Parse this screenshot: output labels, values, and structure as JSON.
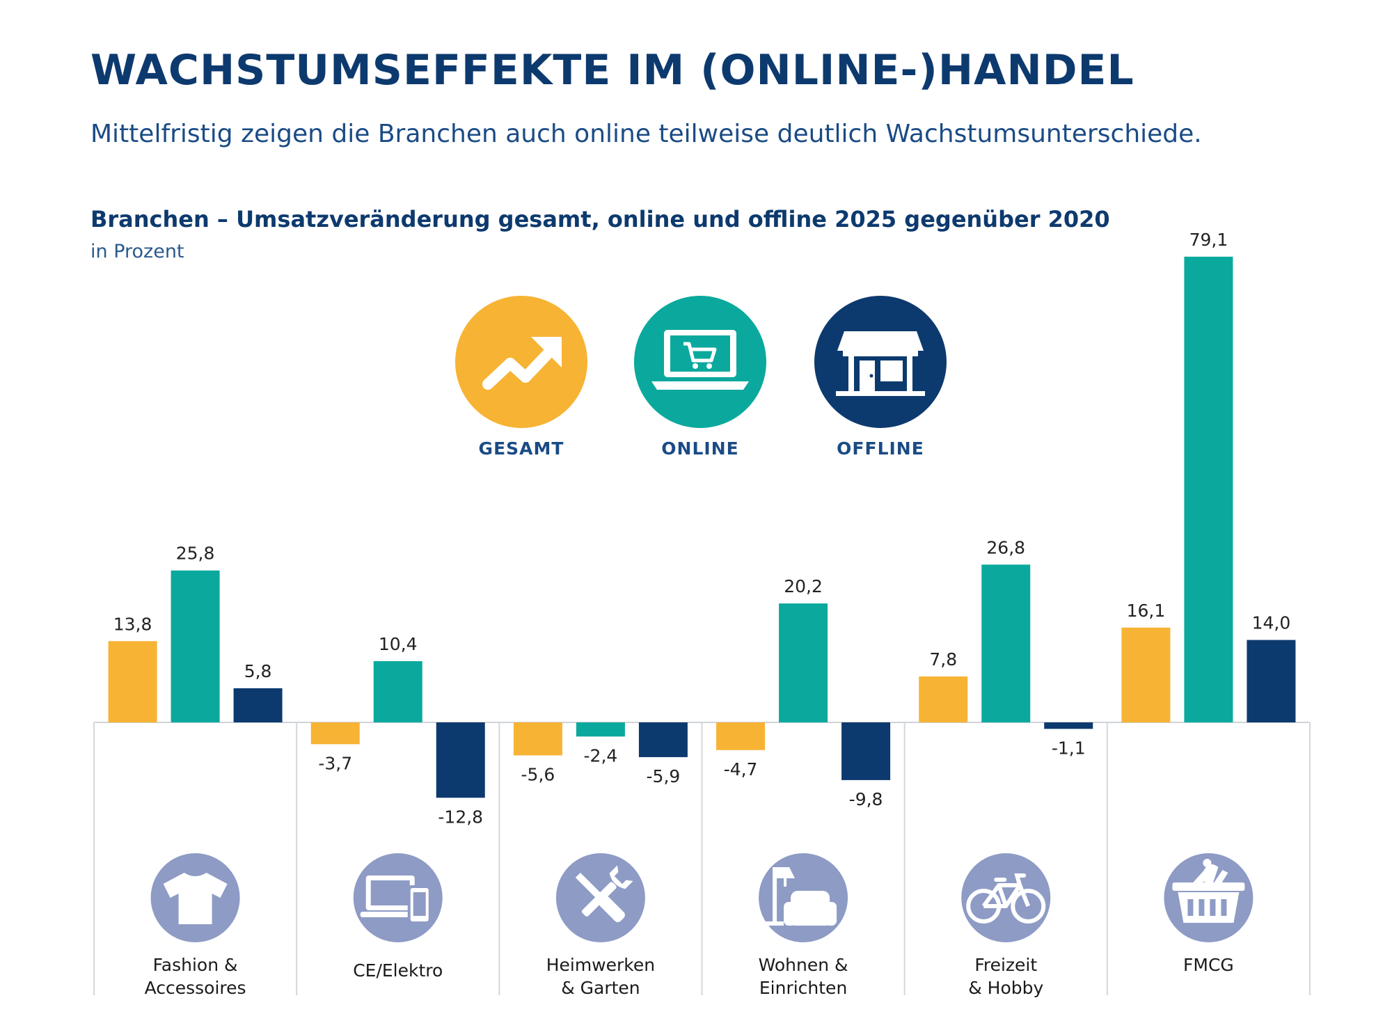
{
  "header": {
    "title": "WACHSTUMSEFFEKTE IM (ONLINE-)HANDEL",
    "subtitle": "Mittelfristig zeigen die Branchen auch online teilweise deutlich Wachstumsunterschiede."
  },
  "chart_data": {
    "type": "bar",
    "title": "Branchen – Umsatzveränderung gesamt, online und offline 2025 gegenüber 2020",
    "unit": "in Prozent",
    "categories": [
      {
        "label_lines": [
          "Fashion &",
          "Accessoires"
        ],
        "icon": "tshirt-icon"
      },
      {
        "label_lines": [
          "CE/Elektro"
        ],
        "icon": "devices-icon"
      },
      {
        "label_lines": [
          "Heimwerken",
          "& Garten"
        ],
        "icon": "tools-icon"
      },
      {
        "label_lines": [
          "Wohnen &",
          "Einrichten"
        ],
        "icon": "armchair-lamp-icon"
      },
      {
        "label_lines": [
          "Freizeit",
          "& Hobby"
        ],
        "icon": "bicycle-icon"
      },
      {
        "label_lines": [
          "FMCG"
        ],
        "icon": "basket-icon"
      }
    ],
    "series": [
      {
        "name": "GESAMT",
        "color": "#f7b334",
        "icon": "trend-up-icon",
        "values": [
          13.8,
          -3.7,
          -5.6,
          -4.7,
          7.8,
          16.1
        ],
        "labels": [
          "13,8",
          "-3,7",
          "-5,6",
          "-4,7",
          "7,8",
          "16,1"
        ]
      },
      {
        "name": "ONLINE",
        "color": "#0ba99d",
        "icon": "laptop-cart-icon",
        "values": [
          25.8,
          10.4,
          -2.4,
          20.2,
          26.8,
          79.1
        ],
        "labels": [
          "25,8",
          "10,4",
          "-2,4",
          "20,2",
          "26,8",
          "79,1"
        ]
      },
      {
        "name": "OFFLINE",
        "color": "#0d3a6e",
        "icon": "store-icon",
        "values": [
          5.8,
          -12.8,
          -5.9,
          -9.8,
          -1.1,
          14.0
        ],
        "labels": [
          "5,8",
          "-12,8",
          "-5,9",
          "-9,8",
          "-1,1",
          "14,0"
        ]
      }
    ],
    "legend_position": "top-center",
    "grid": false,
    "category_icon_color": "#8d9bc5"
  }
}
